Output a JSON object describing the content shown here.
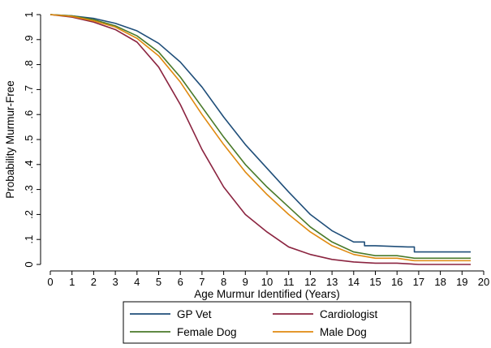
{
  "chart_data": {
    "type": "line",
    "title": "",
    "xlabel": "Age Murmur Identified (Years)",
    "ylabel": "Probability Murmur-Free",
    "xlim": [
      0,
      20
    ],
    "ylim": [
      0,
      1
    ],
    "x_ticks": [
      0,
      1,
      2,
      3,
      4,
      5,
      6,
      7,
      8,
      9,
      10,
      11,
      12,
      13,
      14,
      15,
      16,
      17,
      18,
      19,
      20
    ],
    "x_tick_labels": [
      "0",
      "1",
      "2",
      "3",
      "4",
      "5",
      "6",
      "7",
      "8",
      "9",
      "10",
      "11",
      "12",
      "13",
      "14",
      "15",
      "16",
      "17",
      "18",
      "19",
      "20"
    ],
    "y_ticks": [
      0,
      0.1,
      0.2,
      0.3,
      0.4,
      0.5,
      0.6,
      0.7,
      0.8,
      0.9,
      1
    ],
    "y_tick_labels": [
      "0",
      ".1",
      ".2",
      ".3",
      ".4",
      ".5",
      ".6",
      ".7",
      ".8",
      ".9",
      "1"
    ],
    "grid": false,
    "legend_position": "bottom",
    "series": [
      {
        "name": "GP Vet",
        "color": "#1f4e79",
        "x": [
          0,
          1,
          2,
          3,
          4,
          5,
          6,
          7,
          8,
          9,
          10,
          11,
          12,
          13,
          14,
          14.5,
          15,
          16.5,
          16.8,
          19.4
        ],
        "y": [
          1.0,
          0.995,
          0.985,
          0.965,
          0.935,
          0.885,
          0.81,
          0.71,
          0.59,
          0.48,
          0.385,
          0.29,
          0.2,
          0.135,
          0.09,
          0.075,
          0.075,
          0.07,
          0.05,
          0.05
        ]
      },
      {
        "name": "Cardiologist",
        "color": "#8b2440",
        "x": [
          0,
          1,
          2,
          3,
          4,
          5,
          6,
          7,
          8,
          9,
          10,
          11,
          12,
          13,
          14,
          15,
          16,
          17,
          19.4
        ],
        "y": [
          1.0,
          0.99,
          0.97,
          0.94,
          0.89,
          0.79,
          0.64,
          0.46,
          0.31,
          0.2,
          0.13,
          0.07,
          0.04,
          0.02,
          0.01,
          0.005,
          0.005,
          0.0,
          0.0
        ]
      },
      {
        "name": "Female Dog",
        "color": "#4a7a2a",
        "x": [
          0,
          1,
          2,
          3,
          4,
          5,
          6,
          7,
          8,
          9,
          10,
          11,
          12,
          13,
          14,
          15,
          16,
          16.8,
          19.4
        ],
        "y": [
          1.0,
          0.995,
          0.98,
          0.955,
          0.915,
          0.85,
          0.75,
          0.63,
          0.51,
          0.4,
          0.31,
          0.23,
          0.15,
          0.09,
          0.05,
          0.035,
          0.035,
          0.025,
          0.025
        ]
      },
      {
        "name": "Male Dog",
        "color": "#e08a10",
        "x": [
          0,
          1,
          2,
          3,
          4,
          5,
          6,
          7,
          8,
          9,
          10,
          11,
          12,
          13,
          14,
          15,
          16,
          16.8,
          19.4
        ],
        "y": [
          1.0,
          0.993,
          0.975,
          0.95,
          0.905,
          0.835,
          0.73,
          0.6,
          0.48,
          0.37,
          0.28,
          0.2,
          0.13,
          0.075,
          0.04,
          0.025,
          0.025,
          0.015,
          0.015
        ]
      }
    ]
  }
}
